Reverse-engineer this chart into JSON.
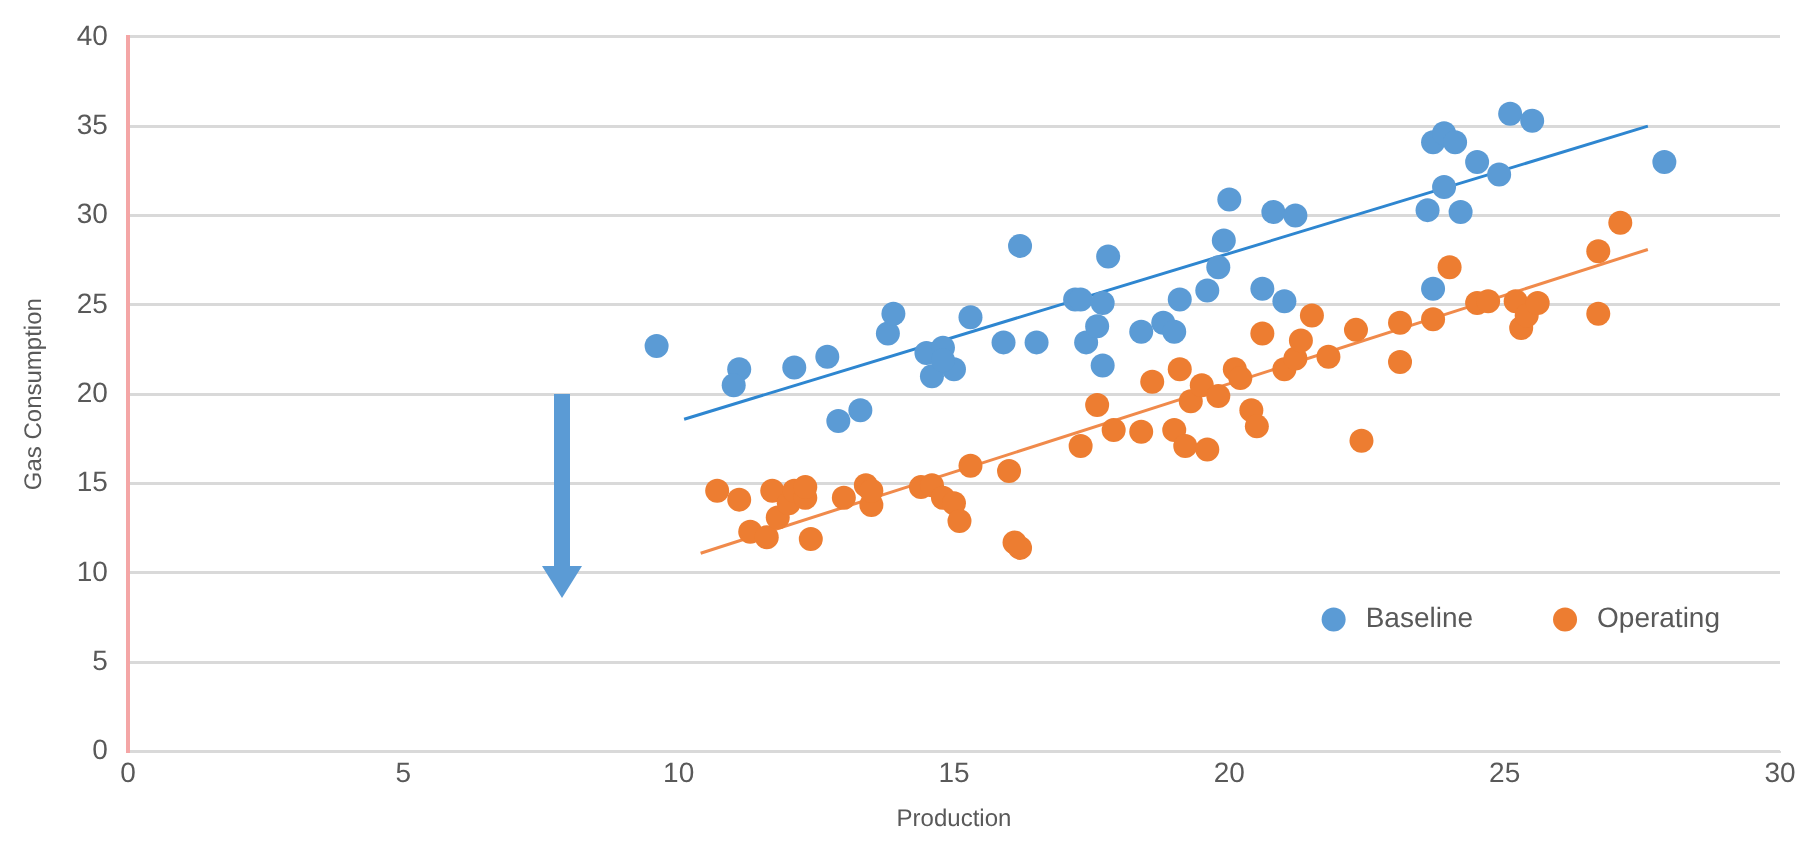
{
  "chart_data": {
    "type": "scatter",
    "xlabel": "Production",
    "ylabel": "Gas Consumption",
    "xlim": [
      0,
      30
    ],
    "xticks": [
      0,
      5,
      10,
      15,
      20,
      25,
      30
    ],
    "ylim": [
      0,
      40
    ],
    "yticks": [
      0,
      5,
      10,
      15,
      20,
      25,
      30,
      35,
      40
    ],
    "grid": "y",
    "legend": "bottom right",
    "series": [
      {
        "name": "Baseline",
        "color": "#5b9bd5",
        "marker": "circle",
        "x": [
          9.6,
          11.1,
          11.0,
          12.1,
          12.7,
          12.9,
          13.3,
          13.8,
          13.9,
          14.5,
          14.6,
          14.8,
          15.0,
          14.8,
          15.3,
          15.9,
          16.2,
          16.5,
          17.2,
          17.3,
          17.4,
          17.6,
          17.7,
          17.7,
          17.8,
          18.4,
          18.8,
          19.0,
          19.1,
          19.6,
          19.8,
          19.9,
          20.0,
          20.6,
          20.8,
          21.0,
          21.2,
          23.6,
          23.7,
          23.7,
          23.9,
          24.1,
          23.9,
          24.2,
          24.5,
          24.9,
          25.1,
          25.5,
          27.9
        ],
        "values": [
          22.7,
          21.4,
          20.5,
          21.5,
          22.1,
          18.5,
          19.1,
          23.4,
          24.5,
          22.3,
          21.0,
          22.6,
          21.4,
          21.9,
          24.3,
          22.9,
          28.3,
          22.9,
          25.3,
          25.3,
          22.9,
          23.8,
          25.1,
          21.6,
          27.7,
          23.5,
          24.0,
          23.5,
          25.3,
          25.8,
          27.1,
          28.6,
          30.9,
          25.9,
          30.2,
          25.2,
          30.0,
          30.3,
          25.9,
          34.1,
          34.6,
          34.1,
          31.6,
          30.2,
          33.0,
          32.3,
          35.7,
          35.3,
          33.0
        ]
      },
      {
        "name": "Operating",
        "color": "#ed7d31",
        "marker": "circle",
        "x": [
          10.7,
          11.1,
          11.3,
          11.6,
          11.7,
          11.8,
          12.0,
          12.1,
          12.3,
          12.3,
          12.4,
          13.0,
          13.4,
          13.5,
          13.5,
          14.4,
          14.6,
          14.8,
          15.0,
          15.1,
          15.3,
          16.0,
          16.1,
          16.2,
          17.3,
          17.6,
          17.9,
          18.4,
          18.6,
          19.0,
          19.1,
          19.2,
          19.3,
          19.5,
          19.6,
          19.8,
          20.1,
          20.2,
          20.4,
          20.5,
          20.6,
          21.0,
          21.2,
          21.3,
          21.5,
          21.8,
          22.3,
          22.4,
          23.1,
          23.1,
          23.7,
          24.0,
          24.5,
          24.7,
          25.2,
          25.3,
          25.4,
          25.6,
          26.7,
          26.7,
          27.1
        ],
        "values": [
          14.6,
          14.1,
          12.3,
          12.0,
          14.6,
          13.1,
          13.9,
          14.6,
          14.2,
          14.8,
          11.9,
          14.2,
          14.9,
          13.8,
          14.6,
          14.8,
          14.9,
          14.2,
          13.9,
          12.9,
          16.0,
          15.7,
          11.7,
          11.4,
          17.1,
          19.4,
          18.0,
          17.9,
          20.7,
          18.0,
          21.4,
          17.1,
          19.6,
          20.5,
          16.9,
          19.9,
          21.4,
          20.9,
          19.1,
          18.2,
          23.4,
          21.4,
          22.0,
          23.0,
          24.4,
          22.1,
          23.6,
          17.4,
          21.8,
          24.0,
          24.2,
          27.1,
          25.1,
          25.2,
          25.2,
          23.7,
          24.4,
          25.1,
          28.0,
          24.5,
          29.6
        ]
      },
      {
        "type": "line",
        "color": "#2e86d0",
        "marker": "none",
        "x": [
          10.1,
          27.6
        ],
        "values": [
          18.6,
          35.0
        ]
      },
      {
        "type": "line",
        "color": "#f08a4b",
        "marker": "none",
        "x": [
          10.4,
          27.6
        ],
        "values": [
          11.1,
          28.1
        ]
      }
    ]
  }
}
